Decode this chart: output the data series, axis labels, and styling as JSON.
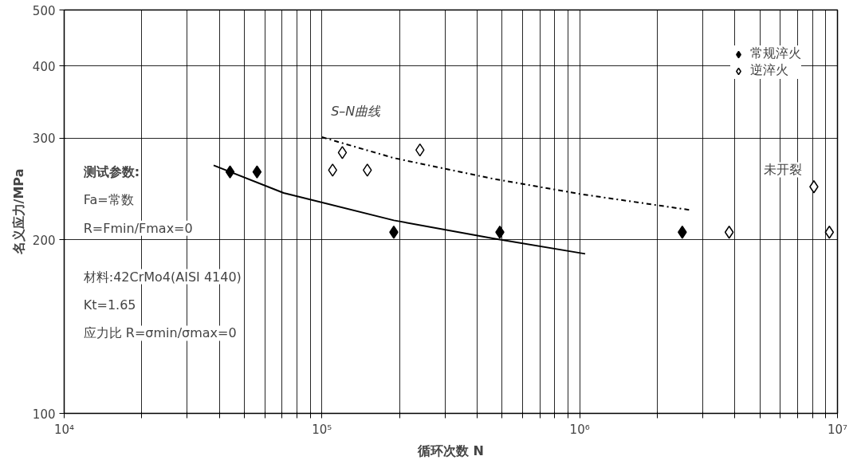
{
  "chart_data": {
    "type": "scatter",
    "xlabel": "循环次数 N",
    "ylabel": "名义应力/MPa",
    "log": "xy",
    "grid": true,
    "legend": "top right",
    "xlim": [
      10000,
      10000000
    ],
    "ylim": [
      100,
      500
    ],
    "xticks": [
      {
        "value": 10000,
        "label": "10⁴"
      },
      {
        "value": 20000,
        "label": null
      },
      {
        "value": 30000,
        "label": null
      },
      {
        "value": 40000,
        "label": null
      },
      {
        "value": 50000,
        "label": null
      },
      {
        "value": 60000,
        "label": null
      },
      {
        "value": 70000,
        "label": null
      },
      {
        "value": 80000,
        "label": null
      },
      {
        "value": 90000,
        "label": null
      },
      {
        "value": 100000,
        "label": "10⁵"
      },
      {
        "value": 200000,
        "label": null
      },
      {
        "value": 300000,
        "label": null
      },
      {
        "value": 400000,
        "label": null
      },
      {
        "value": 500000,
        "label": null
      },
      {
        "value": 600000,
        "label": null
      },
      {
        "value": 700000,
        "label": null
      },
      {
        "value": 800000,
        "label": null
      },
      {
        "value": 900000,
        "label": null
      },
      {
        "value": 1000000,
        "label": "10⁶"
      },
      {
        "value": 2000000,
        "label": null
      },
      {
        "value": 3000000,
        "label": null
      },
      {
        "value": 4000000,
        "label": null
      },
      {
        "value": 5000000,
        "label": null
      },
      {
        "value": 6000000,
        "label": null
      },
      {
        "value": 7000000,
        "label": null
      },
      {
        "value": 8000000,
        "label": null
      },
      {
        "value": 9000000,
        "label": null
      },
      {
        "value": 10000000,
        "label": "10⁷"
      }
    ],
    "yticks": [
      100,
      200,
      300,
      400,
      500
    ],
    "series": [
      {
        "name": "常规淬火",
        "color": "#000000",
        "marker": "diamond",
        "x": [
          44000,
          56000,
          190000,
          490000,
          2500000
        ],
        "values": [
          262,
          262,
          206,
          206,
          206
        ]
      },
      {
        "name": "逆淬火",
        "color": "#ffffff",
        "marker": "diamond",
        "x": [
          110000,
          120000,
          150000,
          240000,
          3800000,
          8100000,
          9300000
        ],
        "values": [
          264,
          283,
          264,
          286,
          206,
          247,
          206
        ]
      },
      {
        "type": "line",
        "color": "#000000",
        "line_style": "solid",
        "x": [
          38000,
          71000,
          190000,
          460000,
          1050000
        ],
        "values": [
          269,
          241,
          216,
          201,
          189
        ]
      },
      {
        "type": "line",
        "color": "#000000",
        "line_style": "dashdot",
        "x": [
          100000,
          190000,
          460000,
          1000000,
          2700000
        ],
        "values": [
          301,
          277,
          255,
          240,
          225
        ]
      }
    ],
    "annotations": [
      "测试参数:",
      "Fa=常数",
      "R=Fmin/Fmax=0",
      "材料:42CrMo4(AISI 4140)",
      "Kt=1.65",
      "应力比 R=σmin/σmax=0",
      "S–N曲线",
      "未开裂"
    ]
  }
}
